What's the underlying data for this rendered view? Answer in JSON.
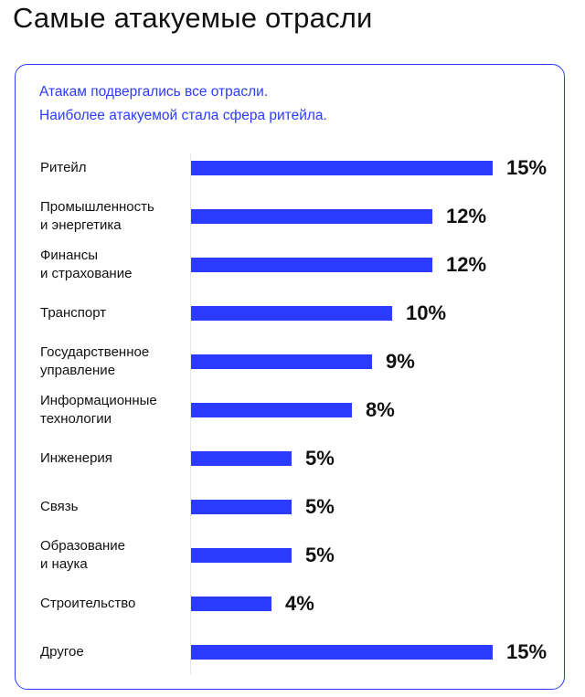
{
  "title": "Самые атакуемые отрасли",
  "subtitle_line1": "Атакам подвергались все отрасли.",
  "subtitle_line2": "Наиболее атакуемой стала сфера ритейла.",
  "colors": {
    "accent": "#2b3bff",
    "text": "#111111"
  },
  "chart_data": {
    "type": "bar",
    "orientation": "horizontal",
    "categories": [
      [
        "Ритейл"
      ],
      [
        "Промышленность",
        "и энергетика"
      ],
      [
        "Финансы",
        "и страхование"
      ],
      [
        "Транспорт"
      ],
      [
        "Государственное",
        "управление"
      ],
      [
        "Информационные",
        "технологии"
      ],
      [
        "Инженерия"
      ],
      [
        "Связь"
      ],
      [
        "Образование",
        "и наука"
      ],
      [
        "Строительство"
      ],
      [
        "Другое"
      ]
    ],
    "values": [
      15,
      12,
      12,
      10,
      9,
      8,
      5,
      5,
      5,
      4,
      15
    ],
    "value_labels": [
      "15%",
      "12%",
      "12%",
      "10%",
      "9%",
      "8%",
      "5%",
      "5%",
      "5%",
      "4%",
      "15%"
    ],
    "xlim": [
      0,
      15
    ],
    "grid": false
  }
}
